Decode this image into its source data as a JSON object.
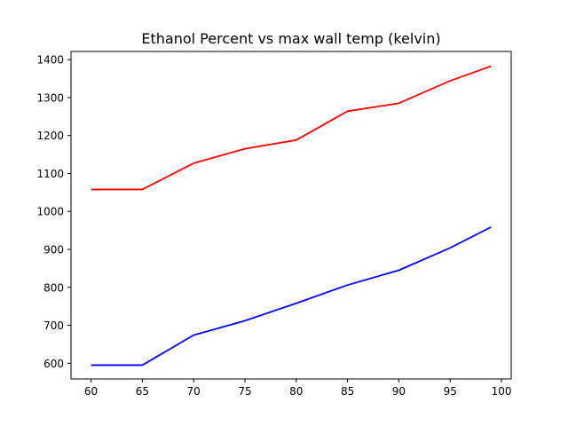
{
  "chart_data": {
    "type": "line",
    "title": "Ethanol Percent vs max wall temp (kelvin)",
    "xlabel": "",
    "ylabel": "",
    "x": [
      60,
      65,
      70,
      75,
      80,
      85,
      90,
      95,
      99
    ],
    "series": [
      {
        "color": "#ff0000",
        "values": [
          1058,
          1058,
          1127,
          1165,
          1188,
          1264,
          1285,
          1344,
          1383
        ]
      },
      {
        "color": "#0000ff",
        "values": [
          595,
          595,
          674,
          712,
          758,
          806,
          845,
          904,
          959
        ]
      }
    ],
    "xlim": [
      58.05,
      100.95
    ],
    "ylim": [
      558.6,
      1421.4
    ],
    "xticks": [
      60,
      65,
      70,
      75,
      80,
      85,
      90,
      95,
      100
    ],
    "yticks": [
      600,
      700,
      800,
      900,
      1000,
      1100,
      1200,
      1300,
      1400
    ],
    "grid": false,
    "legend": "none"
  }
}
